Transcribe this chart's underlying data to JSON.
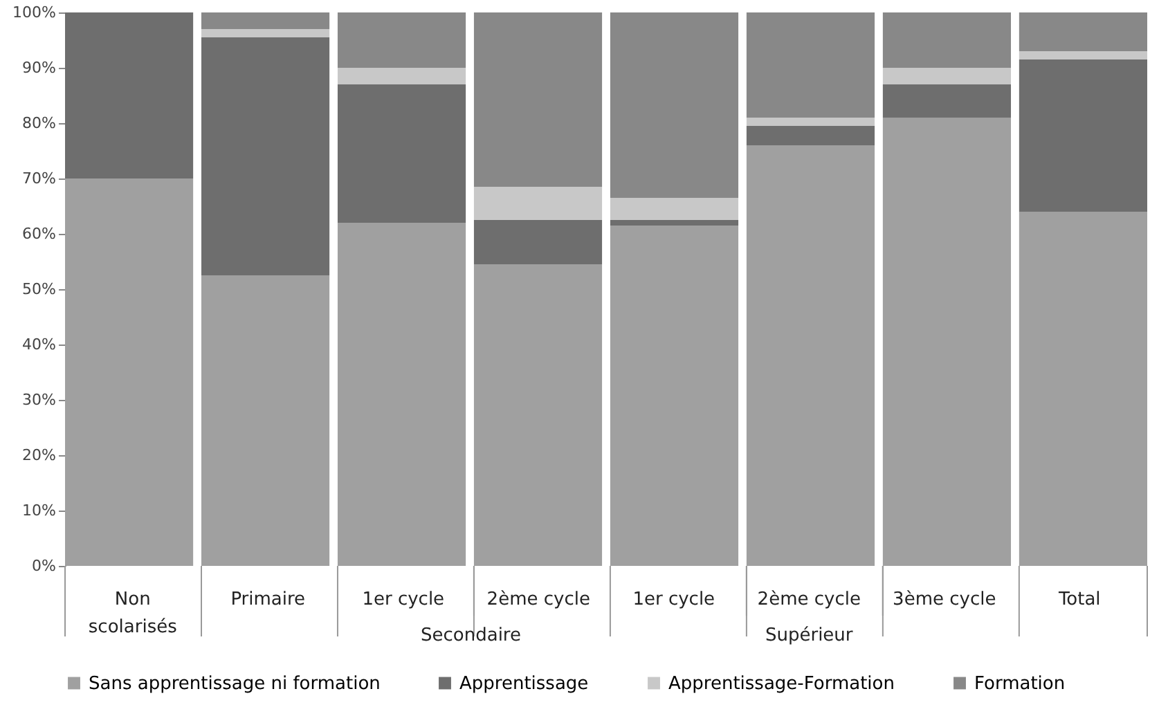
{
  "chart_data": {
    "type": "bar",
    "stacked": true,
    "categories": [
      "Non scolarisés",
      "Primaire",
      "1er cycle",
      "2ème cycle",
      "1er cycle",
      "2ème cycle",
      "3ème cycle",
      "Total"
    ],
    "annotations": [
      "Secondaire",
      "Supérieur"
    ],
    "series": [
      {
        "name": "Sans apprentissage ni formation",
        "color": "#a0a0a0",
        "values": [
          70,
          52.5,
          62,
          54.5,
          61.5,
          76,
          81,
          64
        ]
      },
      {
        "name": "Apprentissage",
        "color": "#6e6e6e",
        "values": [
          30,
          43,
          25,
          8,
          1,
          3.5,
          6,
          27.5
        ]
      },
      {
        "name": "Apprentissage-Formation",
        "color": "#c8c8c8",
        "values": [
          0,
          1.5,
          3,
          6,
          4,
          1.5,
          3,
          1.5
        ]
      },
      {
        "name": "Formation",
        "color": "#888888",
        "values": [
          0,
          3,
          10,
          31.5,
          33.5,
          19,
          10,
          7
        ]
      }
    ],
    "ylim": [
      0,
      100
    ],
    "yticks": [
      {
        "value": 0,
        "label": "0%"
      },
      {
        "value": 10,
        "label": "10%"
      },
      {
        "value": 20,
        "label": "20%"
      },
      {
        "value": 30,
        "label": "30%"
      },
      {
        "value": 40,
        "label": "40%"
      },
      {
        "value": 50,
        "label": "50%"
      },
      {
        "value": 60,
        "label": "60%"
      },
      {
        "value": 70,
        "label": "70%"
      },
      {
        "value": 80,
        "label": "80%"
      },
      {
        "value": 90,
        "label": "90%"
      },
      {
        "value": 100,
        "label": "100%"
      }
    ],
    "grid": false,
    "legend": "bottom"
  }
}
